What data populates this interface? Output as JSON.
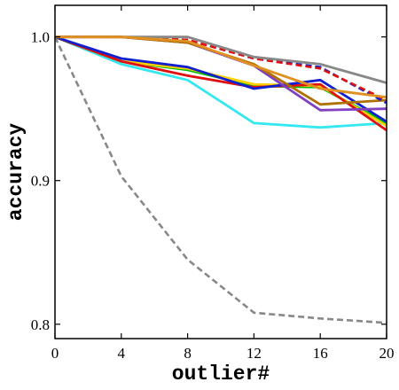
{
  "chart_data": {
    "type": "line",
    "xlabel": "outlier#",
    "ylabel": "accuracy",
    "x": [
      0,
      4,
      8,
      12,
      16,
      20
    ],
    "xlim": [
      0,
      20
    ],
    "ylim": [
      0.79,
      1.022
    ],
    "xticks": [
      0,
      4,
      8,
      12,
      16,
      20
    ],
    "yticks": [
      0.8,
      0.9,
      1.0
    ],
    "ytick_labels": [
      "0.8",
      "0.9",
      "1.0"
    ],
    "grid": false,
    "legend": "none",
    "series": [
      {
        "color": "#888888",
        "dash": true,
        "values": [
          1.0,
          0.903,
          0.845,
          0.808,
          0.804,
          0.801
        ]
      },
      {
        "color": "#33e8f0",
        "dash": false,
        "values": [
          1.0,
          0.981,
          0.97,
          0.94,
          0.937,
          0.94
        ]
      },
      {
        "color": "#00c000",
        "dash": false,
        "values": [
          1.0,
          0.983,
          0.977,
          0.966,
          0.965,
          0.94
        ]
      },
      {
        "color": "#ffd000",
        "dash": false,
        "values": [
          1.0,
          0.983,
          0.978,
          0.967,
          0.966,
          0.938
        ]
      },
      {
        "color": "#e01010",
        "dash": false,
        "values": [
          1.0,
          0.983,
          0.973,
          0.965,
          0.967,
          0.935
        ]
      },
      {
        "color": "#1020d0",
        "dash": false,
        "values": [
          1.0,
          0.985,
          0.979,
          0.964,
          0.97,
          0.941
        ]
      },
      {
        "color": "#8040c0",
        "dash": false,
        "values": [
          1.0,
          1.0,
          0.996,
          0.98,
          0.949,
          0.95
        ]
      },
      {
        "color": "#b07000",
        "dash": false,
        "values": [
          1.0,
          1.0,
          0.996,
          0.981,
          0.953,
          0.956
        ]
      },
      {
        "color": "#1020d0",
        "dash": true,
        "values": [
          1.0,
          1.0,
          0.998,
          0.985,
          0.979,
          0.954
        ]
      },
      {
        "color": "#e01010",
        "dash": true,
        "values": [
          1.0,
          1.0,
          0.998,
          0.985,
          0.978,
          0.956
        ]
      },
      {
        "color": "#888888",
        "dash": false,
        "values": [
          1.0,
          1.0,
          1.0,
          0.986,
          0.981,
          0.968
        ]
      },
      {
        "color": "#e09020",
        "dash": false,
        "values": [
          1.0,
          1.0,
          0.997,
          0.98,
          0.964,
          0.958
        ]
      }
    ]
  }
}
